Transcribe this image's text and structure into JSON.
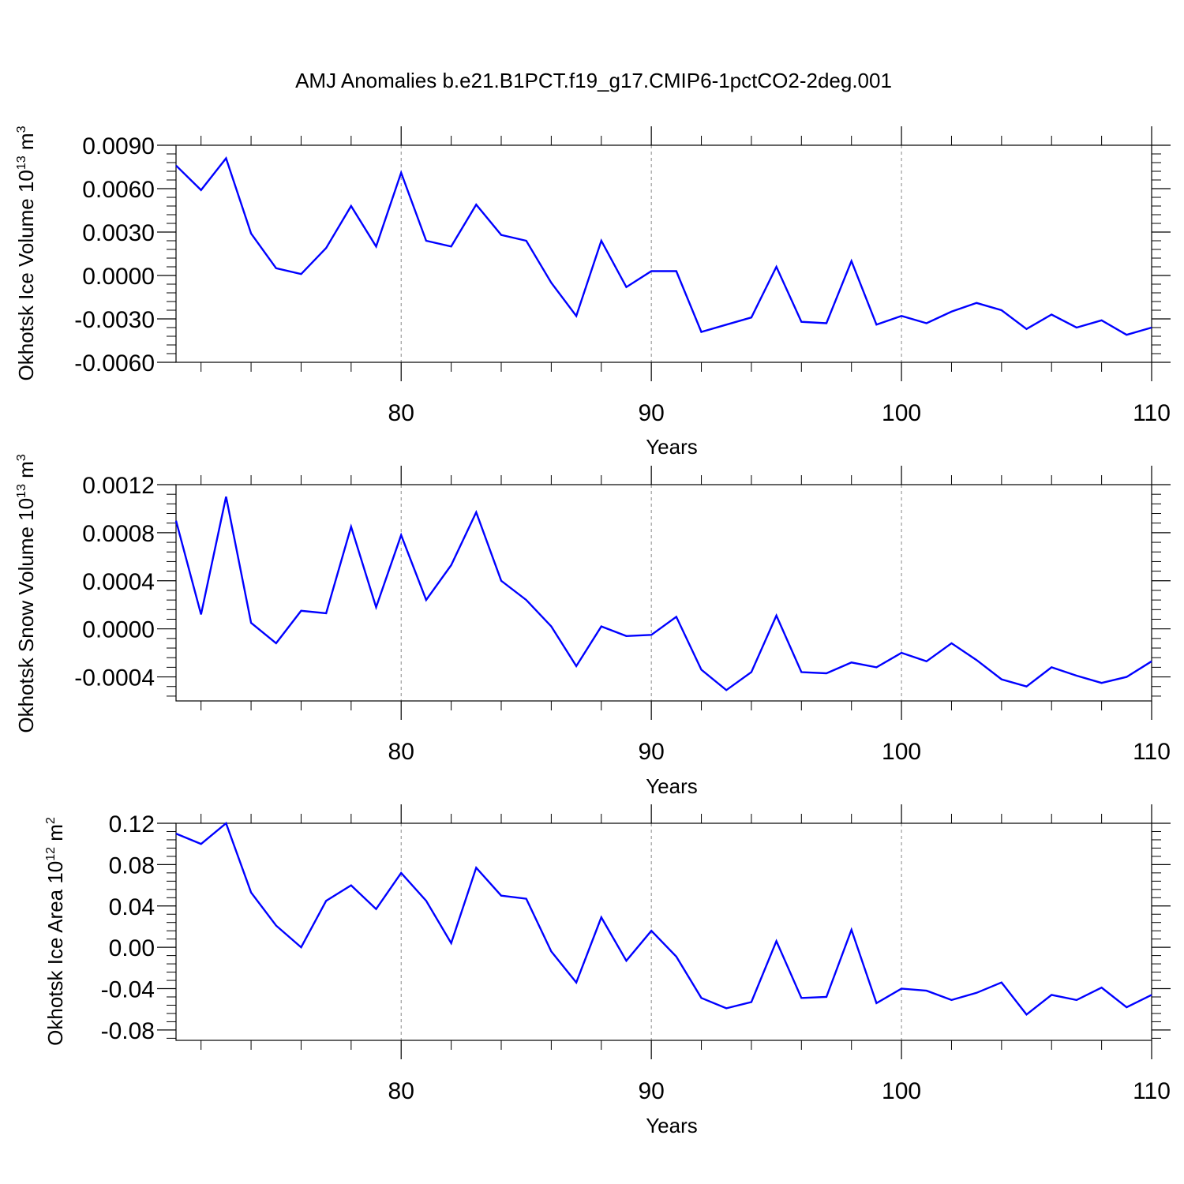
{
  "title": "AMJ Anomalies b.e21.B1PCT.f19_g17.CMIP6-1pctCO2-2deg.001",
  "colors": {
    "line": "#0000ff",
    "axis": "#000000",
    "grid": "#888888"
  },
  "chart_data": [
    {
      "type": "line",
      "ylabel": {
        "base": "Okhotsk Ice Volume 10",
        "exp": "13",
        "unit": " m",
        "unit_exp": "3"
      },
      "xlabel": "Years",
      "xlim": [
        71,
        110
      ],
      "ylim": [
        -0.006,
        0.009
      ],
      "yticks": [
        -0.006,
        -0.003,
        0.0,
        0.003,
        0.006,
        0.009
      ],
      "ytick_labels": [
        "-0.0060",
        "-0.0030",
        "0.0000",
        "0.0030",
        "0.0060",
        "0.0090"
      ],
      "xticks": [
        80,
        90,
        100,
        110
      ],
      "xtick_labels": [
        "80",
        "90",
        "100",
        "110"
      ],
      "grid_x": [
        80,
        90,
        100
      ],
      "series": [
        {
          "name": "Okhotsk Ice Volume",
          "x": [
            71,
            72,
            73,
            74,
            75,
            76,
            77,
            78,
            79,
            80,
            81,
            82,
            83,
            84,
            85,
            86,
            87,
            88,
            89,
            90,
            91,
            92,
            93,
            94,
            95,
            96,
            97,
            98,
            99,
            100,
            101,
            102,
            103,
            104,
            105,
            106,
            107,
            108,
            109,
            110
          ],
          "values": [
            0.0076,
            0.0059,
            0.0081,
            0.0029,
            0.0005,
            0.0001,
            0.0019,
            0.0048,
            0.002,
            0.0071,
            0.0024,
            0.002,
            0.0049,
            0.0028,
            0.0024,
            -0.0005,
            -0.0028,
            0.0024,
            -0.0008,
            0.0003,
            0.0003,
            -0.0039,
            -0.0034,
            -0.0029,
            0.0006,
            -0.0032,
            -0.0033,
            0.001,
            -0.0034,
            -0.0028,
            -0.0033,
            -0.0025,
            -0.0019,
            -0.0024,
            -0.0037,
            -0.0027,
            -0.0036,
            -0.0031,
            -0.0041,
            -0.0036
          ]
        }
      ]
    },
    {
      "type": "line",
      "ylabel": {
        "base": "Okhotsk Snow Volume 10",
        "exp": "13",
        "unit": " m",
        "unit_exp": "3"
      },
      "xlabel": "Years",
      "xlim": [
        71,
        110
      ],
      "ylim": [
        -0.0006,
        0.0012
      ],
      "yticks": [
        -0.0004,
        0.0,
        0.0004,
        0.0008,
        0.0012
      ],
      "ytick_labels": [
        "-0.0004",
        "0.0000",
        "0.0004",
        "0.0008",
        "0.0012"
      ],
      "xticks": [
        80,
        90,
        100,
        110
      ],
      "xtick_labels": [
        "80",
        "90",
        "100",
        "110"
      ],
      "grid_x": [
        80,
        90,
        100
      ],
      "series": [
        {
          "name": "Okhotsk Snow Volume",
          "x": [
            71,
            72,
            73,
            74,
            75,
            76,
            77,
            78,
            79,
            80,
            81,
            82,
            83,
            84,
            85,
            86,
            87,
            88,
            89,
            90,
            91,
            92,
            93,
            94,
            95,
            96,
            97,
            98,
            99,
            100,
            101,
            102,
            103,
            104,
            105,
            106,
            107,
            108,
            109,
            110
          ],
          "values": [
            0.0009,
            0.00012,
            0.0011,
            5e-05,
            -0.00012,
            0.00015,
            0.00013,
            0.00085,
            0.00018,
            0.00078,
            0.00024,
            0.00053,
            0.00097,
            0.0004,
            0.00024,
            2e-05,
            -0.00031,
            2e-05,
            -6e-05,
            -5e-05,
            0.0001,
            -0.00034,
            -0.00051,
            -0.00036,
            0.00011,
            -0.00036,
            -0.00037,
            -0.00028,
            -0.00032,
            -0.0002,
            -0.00027,
            -0.00012,
            -0.00026,
            -0.00042,
            -0.00048,
            -0.00032,
            -0.00039,
            -0.00045,
            -0.0004,
            -0.00027
          ]
        }
      ]
    },
    {
      "type": "line",
      "ylabel": {
        "base": "Okhotsk Ice Area 10",
        "exp": "12",
        "unit": " m",
        "unit_exp": "2"
      },
      "xlabel": "Years",
      "xlim": [
        71,
        110
      ],
      "ylim": [
        -0.09,
        0.12
      ],
      "yticks": [
        -0.08,
        -0.04,
        0.0,
        0.04,
        0.08,
        0.12
      ],
      "ytick_labels": [
        "-0.08",
        "-0.04",
        "0.00",
        "0.04",
        "0.08",
        "0.12"
      ],
      "xticks": [
        80,
        90,
        100,
        110
      ],
      "xtick_labels": [
        "80",
        "90",
        "100",
        "110"
      ],
      "grid_x": [
        80,
        90,
        100
      ],
      "series": [
        {
          "name": "Okhotsk Ice Area",
          "x": [
            71,
            72,
            73,
            74,
            75,
            76,
            77,
            78,
            79,
            80,
            81,
            82,
            83,
            84,
            85,
            86,
            87,
            88,
            89,
            90,
            91,
            92,
            93,
            94,
            95,
            96,
            97,
            98,
            99,
            100,
            101,
            102,
            103,
            104,
            105,
            106,
            107,
            108,
            109,
            110
          ],
          "values": [
            0.11,
            0.1,
            0.12,
            0.053,
            0.021,
            0.0,
            0.045,
            0.06,
            0.037,
            0.072,
            0.045,
            0.004,
            0.077,
            0.05,
            0.047,
            -0.004,
            -0.034,
            0.029,
            -0.013,
            0.016,
            -0.009,
            -0.049,
            -0.059,
            -0.053,
            0.006,
            -0.049,
            -0.048,
            0.017,
            -0.054,
            -0.04,
            -0.042,
            -0.051,
            -0.044,
            -0.034,
            -0.065,
            -0.046,
            -0.051,
            -0.039,
            -0.058,
            -0.046
          ]
        }
      ]
    }
  ]
}
